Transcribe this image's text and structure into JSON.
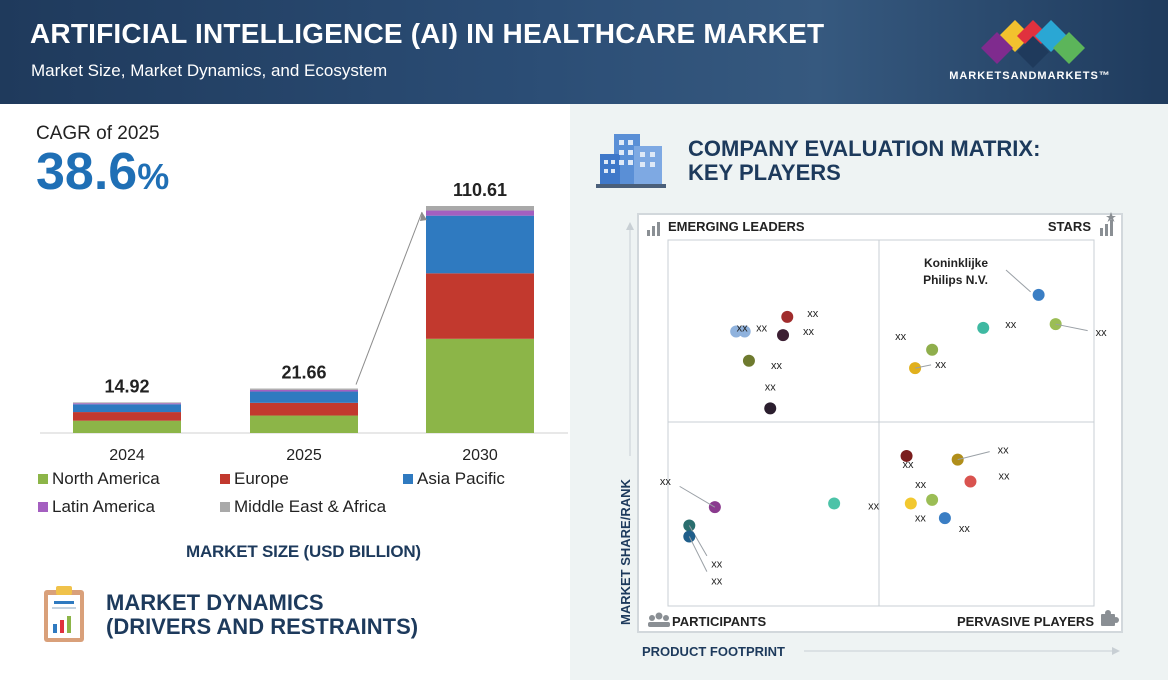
{
  "header": {
    "title": "ARTIFICIAL INTELLIGENCE (AI) IN HEALTHCARE MARKET",
    "subtitle": "Market Size, Market Dynamics, and Ecosystem",
    "logo_text": "MARKETSANDMARKETS™"
  },
  "cagr": {
    "label": "CAGR of 2025",
    "value": "38.6",
    "unit": "%"
  },
  "market_size_label": "MARKET SIZE (USD BILLION)",
  "dynamics": {
    "line1": "MARKET DYNAMICS",
    "line2": "(DRIVERS AND RESTRAINTS)"
  },
  "matrix": {
    "title_line1": "COMPANY EVALUATION MATRIX:",
    "title_line2": "KEY PLAYERS",
    "quadrants": {
      "top_left": "EMERGING LEADERS",
      "top_right": "STARS",
      "bottom_left": "PARTICIPANTS",
      "bottom_right": "PERVASIVE PLAYERS"
    },
    "y_axis_label": "MARKET SHARE/RANK",
    "x_axis_label": "PRODUCT FOOTPRINT",
    "named_company": "Koninklijke Philips N.V.",
    "company_points": [
      {
        "label": "Koninklijke Philips N.V.",
        "footprint": 0.87,
        "share": 0.85,
        "color": "#3a7ec4"
      },
      {
        "label": "xx",
        "footprint": 0.28,
        "share": 0.79,
        "color": "#a02c2c"
      },
      {
        "label": "xx",
        "footprint": 0.27,
        "share": 0.74,
        "color": "#3c1f33"
      },
      {
        "label": "xx",
        "footprint": 0.16,
        "share": 0.75,
        "color": "#8fb2dd"
      },
      {
        "label": "xx",
        "footprint": 0.18,
        "share": 0.75,
        "color": "#8fb2dd"
      },
      {
        "label": "xx",
        "footprint": 0.19,
        "share": 0.67,
        "color": "#6e7a2e"
      },
      {
        "label": "xx",
        "footprint": 0.24,
        "share": 0.54,
        "color": "#2b1e2e"
      },
      {
        "label": "xx",
        "footprint": 0.62,
        "share": 0.7,
        "color": "#8fae4c"
      },
      {
        "label": "xx",
        "footprint": 0.58,
        "share": 0.65,
        "color": "#e1b01c"
      },
      {
        "label": "xx",
        "footprint": 0.74,
        "share": 0.76,
        "color": "#3fb9a2"
      },
      {
        "label": "xx",
        "footprint": 0.91,
        "share": 0.77,
        "color": "#9bbd55"
      },
      {
        "label": "xx",
        "footprint": 0.56,
        "share": 0.41,
        "color": "#7a1d1d"
      },
      {
        "label": "xx",
        "footprint": 0.68,
        "share": 0.4,
        "color": "#b08e1a"
      },
      {
        "label": "xx",
        "footprint": 0.71,
        "share": 0.34,
        "color": "#d9534f"
      },
      {
        "label": "xx",
        "footprint": 0.62,
        "share": 0.29,
        "color": "#9bbd55"
      },
      {
        "label": "xx",
        "footprint": 0.57,
        "share": 0.28,
        "color": "#f2c82f"
      },
      {
        "label": "xx",
        "footprint": 0.65,
        "share": 0.24,
        "color": "#3a7ec4"
      },
      {
        "label": "xx",
        "footprint": 0.39,
        "share": 0.28,
        "color": "#4cc3a8"
      },
      {
        "label": "xx",
        "footprint": 0.11,
        "share": 0.27,
        "color": "#8a3a8e"
      },
      {
        "label": "xx",
        "footprint": 0.05,
        "share": 0.22,
        "color": "#2a6e6e"
      },
      {
        "label": "xx",
        "footprint": 0.05,
        "share": 0.19,
        "color": "#1f5e8a"
      }
    ]
  },
  "chart_data": {
    "type": "bar",
    "stacked": true,
    "title": "Market Size",
    "ylabel": "USD Billion",
    "categories": [
      "2024",
      "2025",
      "2030"
    ],
    "totals": [
      14.92,
      21.66,
      110.61
    ],
    "total_labels": [
      "14.92",
      "21.66",
      "110.61"
    ],
    "series": [
      {
        "name": "North America",
        "color": "#8cb548",
        "values": [
          6.0,
          8.5,
          45.9
        ]
      },
      {
        "name": "Europe",
        "color": "#c2392e",
        "values": [
          4.2,
          6.2,
          31.9
        ]
      },
      {
        "name": "Asia Pacific",
        "color": "#2f7ac0",
        "values": [
          3.8,
          5.5,
          28.1
        ]
      },
      {
        "name": "Latin America",
        "color": "#a45fc0",
        "values": [
          0.5,
          0.8,
          2.5
        ]
      },
      {
        "name": "Middle East & Africa",
        "color": "#a9a9a9",
        "values": [
          0.42,
          0.66,
          2.21
        ]
      }
    ]
  }
}
